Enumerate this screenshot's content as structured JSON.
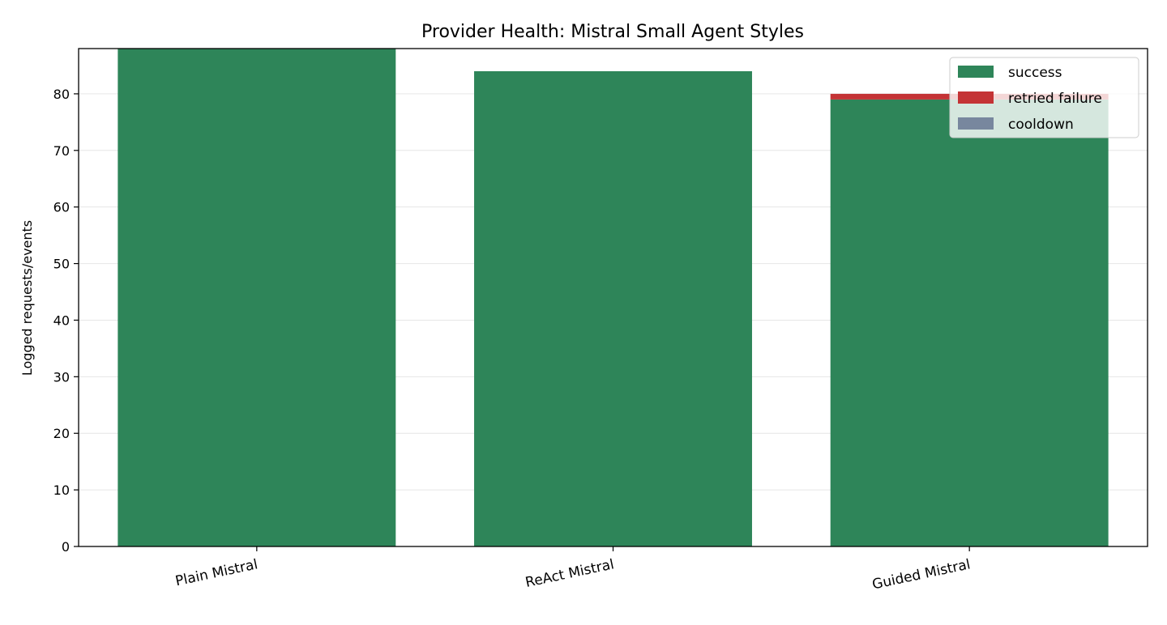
{
  "chart_data": {
    "type": "bar",
    "stacked": true,
    "title": "Provider Health: Mistral Small Agent Styles",
    "xlabel": "",
    "ylabel": "Logged requests/events",
    "ylim": [
      0,
      88
    ],
    "yticks": [
      0,
      10,
      20,
      30,
      40,
      50,
      60,
      70,
      80
    ],
    "grid": "y",
    "legend_position": "top-right",
    "categories": [
      "Plain Mistral",
      "ReAct Mistral",
      "Guided Mistral"
    ],
    "series": [
      {
        "name": "success",
        "color": "#2e8559",
        "values": [
          88,
          84,
          79
        ]
      },
      {
        "name": "retried failure",
        "color": "#c43335",
        "values": [
          0,
          0,
          1
        ]
      },
      {
        "name": "cooldown",
        "color": "#78879e",
        "values": [
          0,
          0,
          0
        ]
      }
    ]
  }
}
